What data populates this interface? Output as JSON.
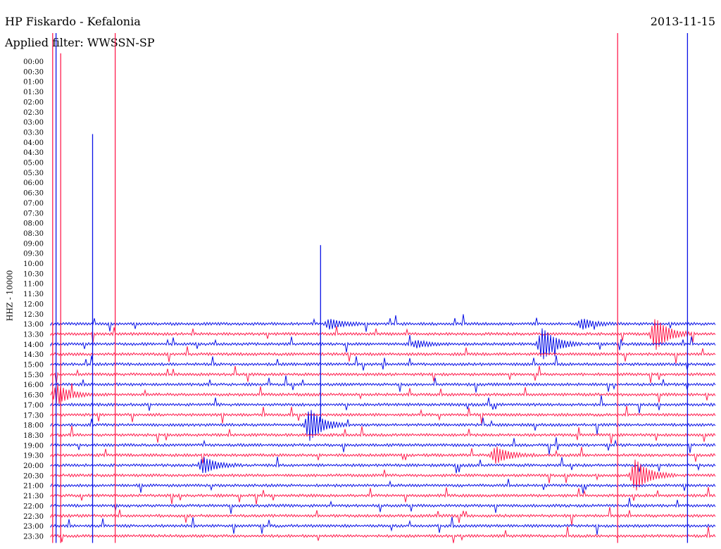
{
  "header": {
    "station": "HP Fiskardo - Kefalonia",
    "filter": "Applied filter: WWSSN-SP",
    "date": "2013-11-15"
  },
  "channel": "HHZ - 10000",
  "colors": {
    "trace_a": "#ff1f4f",
    "trace_b": "#0a12e6",
    "text": "#000000"
  },
  "chart_data": {
    "type": "line",
    "title": "",
    "xlabel": "",
    "ylabel": "HHZ - 10000",
    "time_labels": [
      "00:00",
      "00:30",
      "01:00",
      "01:30",
      "02:00",
      "02:30",
      "03:00",
      "03:30",
      "04:00",
      "04:30",
      "05:00",
      "05:30",
      "06:00",
      "06:30",
      "07:00",
      "07:30",
      "08:00",
      "08:30",
      "09:00",
      "09:30",
      "10:00",
      "10:30",
      "11:00",
      "11:30",
      "12:00",
      "12:30",
      "13:00",
      "13:30",
      "14:00",
      "14:30",
      "15:00",
      "15:30",
      "16:00",
      "16:30",
      "17:00",
      "17:30",
      "18:00",
      "18:30",
      "19:00",
      "19:30",
      "20:00",
      "20:30",
      "21:00",
      "21:30",
      "22:00",
      "22:30",
      "23:00",
      "23:30"
    ],
    "trace_start_label": "13:00",
    "x_range_minutes": [
      0,
      30
    ],
    "grid": false,
    "line_colors_alternate": [
      "#0a12e6",
      "#ff1f4f"
    ],
    "events": [
      {
        "label": "13:00",
        "t": 0.42,
        "amp": 0.3
      },
      {
        "label": "13:00",
        "t": 0.8,
        "amp": 0.3
      },
      {
        "label": "13:30",
        "t": 0.91,
        "amp": 1.0
      },
      {
        "label": "14:00",
        "t": 0.74,
        "amp": 1.0
      },
      {
        "label": "14:00",
        "t": 0.55,
        "amp": 0.2
      },
      {
        "label": "16:30",
        "t": 0.01,
        "amp": 0.6
      },
      {
        "label": "18:00",
        "t": 0.39,
        "amp": 1.0
      },
      {
        "label": "19:30",
        "t": 0.67,
        "amp": 0.5
      },
      {
        "label": "20:00",
        "t": 0.23,
        "amp": 0.5
      },
      {
        "label": "20:30",
        "t": 0.88,
        "amp": 1.0
      }
    ],
    "spikes": [
      {
        "t": 0.003,
        "from": "00:00",
        "to": "23:30"
      },
      {
        "t": 0.008,
        "from": "00:00",
        "to": "23:30"
      },
      {
        "t": 0.015,
        "from": "01:00",
        "to": "23:30"
      },
      {
        "t": 0.063,
        "from": "05:00",
        "to": "23:30"
      },
      {
        "t": 0.097,
        "from": "00:00",
        "to": "23:30"
      },
      {
        "t": 0.406,
        "from": "10:30",
        "to": "17:30"
      },
      {
        "t": 0.853,
        "from": "00:00",
        "to": "23:30"
      },
      {
        "t": 0.958,
        "from": "00:00",
        "to": "23:30"
      }
    ]
  }
}
